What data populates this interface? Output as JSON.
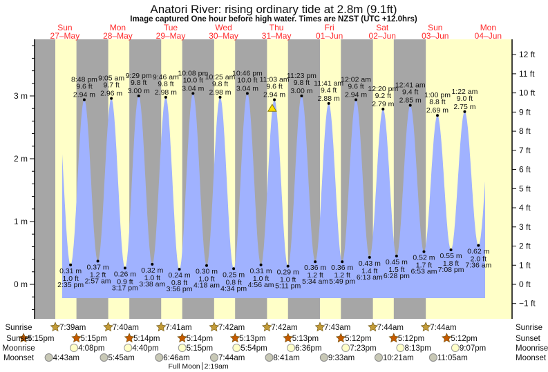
{
  "title": "Anatori River: rising  ordinary tide at 2.8m (9.1ft)",
  "subtitle": "Image captured One hour before high water. Times are NZST (UTC +12.0hrs)",
  "colors": {
    "night": "#a6a6a6",
    "day": "#ffffc8",
    "water": "#a0b2ff",
    "day_label": "#ff2a2a",
    "sunrise": "#c29b38",
    "sunset": "#c45a00",
    "moonrise": "#ffffc8",
    "moonset": "#c8c8b6",
    "current_marker": "#ffe100"
  },
  "row_labels": {
    "sunrise": "Sunrise",
    "sunset": "Sunset",
    "moonrise": "Moonrise",
    "moonset": "Moonset"
  },
  "chart_data": {
    "type": "area",
    "title": "Anatori River: rising  ordinary tide at 2.8m (9.1ft)",
    "y_left_unit": "m",
    "y_right_unit": "ft",
    "ylim_m": [
      -0.55,
      3.9
    ],
    "y_left_ticks": [
      "0 m",
      "1 m",
      "2 m",
      "3 m"
    ],
    "y_right_ticks": [
      "−1 ft",
      "0 ft",
      "1 ft",
      "2 ft",
      "3 ft",
      "4 ft",
      "5 ft",
      "6 ft",
      "7 ft",
      "8 ft",
      "9 ft",
      "10 ft",
      "11 ft",
      "12 ft"
    ],
    "grid": false,
    "days": [
      {
        "dow": "Sun",
        "date": "27–May"
      },
      {
        "dow": "Mon",
        "date": "28–May"
      },
      {
        "dow": "Tue",
        "date": "29–May"
      },
      {
        "dow": "Wed",
        "date": "30–May"
      },
      {
        "dow": "Thu",
        "date": "31–May"
      },
      {
        "dow": "Fri",
        "date": "01–Jun"
      },
      {
        "dow": "Sat",
        "date": "02–Jun"
      },
      {
        "dow": "Sun",
        "date": "03–Jun"
      },
      {
        "dow": "Mon",
        "date": "04–Jun"
      }
    ],
    "tides": [
      {
        "day": 0,
        "type": "low",
        "time": "2:35 pm",
        "m": "0.31 m",
        "ft": "1.0 ft",
        "value": 0.31
      },
      {
        "day": 0,
        "type": "high",
        "time": "8:48 pm",
        "m": "2.94 m",
        "ft": "9.6 ft",
        "value": 2.94
      },
      {
        "day": 1,
        "type": "low",
        "time": "2:57 am",
        "m": "0.37 m",
        "ft": "1.2 ft",
        "value": 0.37
      },
      {
        "day": 1,
        "type": "high",
        "time": "9:05 am",
        "m": "2.96 m",
        "ft": "9.7 ft",
        "value": 2.96
      },
      {
        "day": 1,
        "type": "low",
        "time": "3:17 pm",
        "m": "0.26 m",
        "ft": "0.9 ft",
        "value": 0.26
      },
      {
        "day": 1,
        "type": "high",
        "time": "9:29 pm",
        "m": "3.00 m",
        "ft": "9.8 ft",
        "value": 3.0
      },
      {
        "day": 2,
        "type": "low",
        "time": "3:38 am",
        "m": "0.32 m",
        "ft": "1.0 ft",
        "value": 0.32
      },
      {
        "day": 2,
        "type": "high",
        "time": "9:46 am",
        "m": "2.98 m",
        "ft": "9.8 ft",
        "value": 2.98
      },
      {
        "day": 2,
        "type": "low",
        "time": "3:56 pm",
        "m": "0.24 m",
        "ft": "0.8 ft",
        "value": 0.24
      },
      {
        "day": 2,
        "type": "high",
        "time": "10:08 pm",
        "m": "3.04 m",
        "ft": "10.0 ft",
        "value": 3.04
      },
      {
        "day": 3,
        "type": "low",
        "time": "4:18 am",
        "m": "0.30 m",
        "ft": "1.0 ft",
        "value": 0.3
      },
      {
        "day": 3,
        "type": "high",
        "time": "10:25 am",
        "m": "2.98 m",
        "ft": "9.8 ft",
        "value": 2.98
      },
      {
        "day": 3,
        "type": "low",
        "time": "4:34 pm",
        "m": "0.25 m",
        "ft": "0.8 ft",
        "value": 0.25
      },
      {
        "day": 3,
        "type": "high",
        "time": "10:46 pm",
        "m": "3.04 m",
        "ft": "10.0 ft",
        "value": 3.04
      },
      {
        "day": 4,
        "type": "low",
        "time": "4:56 am",
        "m": "0.31 m",
        "ft": "1.0 ft",
        "value": 0.31
      },
      {
        "day": 4,
        "type": "high",
        "time": "11:03 am",
        "m": "2.94 m",
        "ft": "9.6 ft",
        "value": 2.94
      },
      {
        "day": 4,
        "type": "low",
        "time": "5:11 pm",
        "m": "0.29 m",
        "ft": "1.0 ft",
        "value": 0.29
      },
      {
        "day": 4,
        "type": "high",
        "time": "11:23 pm",
        "m": "3.00 m",
        "ft": "9.8 ft",
        "value": 3.0
      },
      {
        "day": 5,
        "type": "low",
        "time": "5:34 am",
        "m": "0.36 m",
        "ft": "1.2 ft",
        "value": 0.36
      },
      {
        "day": 5,
        "type": "high",
        "time": "11:41 am",
        "m": "2.88 m",
        "ft": "9.4 ft",
        "value": 2.88
      },
      {
        "day": 5,
        "type": "low",
        "time": "5:49 pm",
        "m": "0.36 m",
        "ft": "1.2 ft",
        "value": 0.36
      },
      {
        "day": 6,
        "type": "high",
        "time": "12:02 am",
        "m": "2.94 m",
        "ft": "9.6 ft",
        "value": 2.94
      },
      {
        "day": 6,
        "type": "low",
        "time": "6:13 am",
        "m": "0.43 m",
        "ft": "1.4 ft",
        "value": 0.43
      },
      {
        "day": 6,
        "type": "high",
        "time": "12:20 pm",
        "m": "2.79 m",
        "ft": "9.2 ft",
        "value": 2.79
      },
      {
        "day": 6,
        "type": "low",
        "time": "6:28 pm",
        "m": "0.45 m",
        "ft": "1.5 ft",
        "value": 0.45
      },
      {
        "day": 7,
        "type": "high",
        "time": "12:41 am",
        "m": "2.85 m",
        "ft": "9.4 ft",
        "value": 2.85
      },
      {
        "day": 7,
        "type": "low",
        "time": "6:53 am",
        "m": "0.52 m",
        "ft": "1.7 ft",
        "value": 0.52
      },
      {
        "day": 7,
        "type": "high",
        "time": "1:00 pm",
        "m": "2.69 m",
        "ft": "8.8 ft",
        "value": 2.69
      },
      {
        "day": 7,
        "type": "low",
        "time": "7:08 pm",
        "m": "0.55 m",
        "ft": "1.8 ft",
        "value": 0.55
      },
      {
        "day": 8,
        "type": "high",
        "time": "1:22 am",
        "m": "2.75 m",
        "ft": "9.0 ft",
        "value": 2.75
      },
      {
        "day": 8,
        "type": "low",
        "time": "7:36 am",
        "m": "0.62 m",
        "ft": "2.0 ft",
        "value": 0.62
      }
    ],
    "current": {
      "day": 4,
      "time": "10:03 am",
      "value": 2.8,
      "state": "rising"
    },
    "sunrise": [
      {
        "day": 0,
        "time": "7:39am"
      },
      {
        "day": 1,
        "time": "7:40am"
      },
      {
        "day": 2,
        "time": "7:41am"
      },
      {
        "day": 3,
        "time": "7:42am"
      },
      {
        "day": 4,
        "time": "7:42am"
      },
      {
        "day": 5,
        "time": "7:43am"
      },
      {
        "day": 6,
        "time": "7:44am"
      },
      {
        "day": 7,
        "time": "7:44am"
      }
    ],
    "sunset": [
      {
        "day": -1,
        "time": "5:15pm"
      },
      {
        "day": 0,
        "time": "5:15pm"
      },
      {
        "day": 1,
        "time": "5:14pm"
      },
      {
        "day": 2,
        "time": "5:14pm"
      },
      {
        "day": 3,
        "time": "5:13pm"
      },
      {
        "day": 4,
        "time": "5:13pm"
      },
      {
        "day": 5,
        "time": "5:12pm"
      },
      {
        "day": 6,
        "time": "5:12pm"
      },
      {
        "day": 7,
        "time": "5:12pm"
      }
    ],
    "moonrise": [
      {
        "day": 0,
        "time": "4:08pm"
      },
      {
        "day": 1,
        "time": "4:40pm"
      },
      {
        "day": 2,
        "time": "5:15pm"
      },
      {
        "day": 3,
        "time": "5:54pm"
      },
      {
        "day": 4,
        "time": "6:36pm"
      },
      {
        "day": 5,
        "time": "7:23pm"
      },
      {
        "day": 6,
        "time": "8:13pm"
      },
      {
        "day": 7,
        "time": "9:07pm"
      }
    ],
    "moonset": [
      {
        "day": 0,
        "time": "4:43am"
      },
      {
        "day": 1,
        "time": "5:45am"
      },
      {
        "day": 2,
        "time": "6:46am"
      },
      {
        "day": 3,
        "time": "7:44am"
      },
      {
        "day": 4,
        "time": "8:41am"
      },
      {
        "day": 5,
        "time": "9:33am"
      },
      {
        "day": 6,
        "time": "10:21am"
      },
      {
        "day": 7,
        "time": "11:05am"
      }
    ],
    "moon_phase": {
      "label": "Full Moon",
      "day": 3,
      "time": "2:19am"
    }
  }
}
